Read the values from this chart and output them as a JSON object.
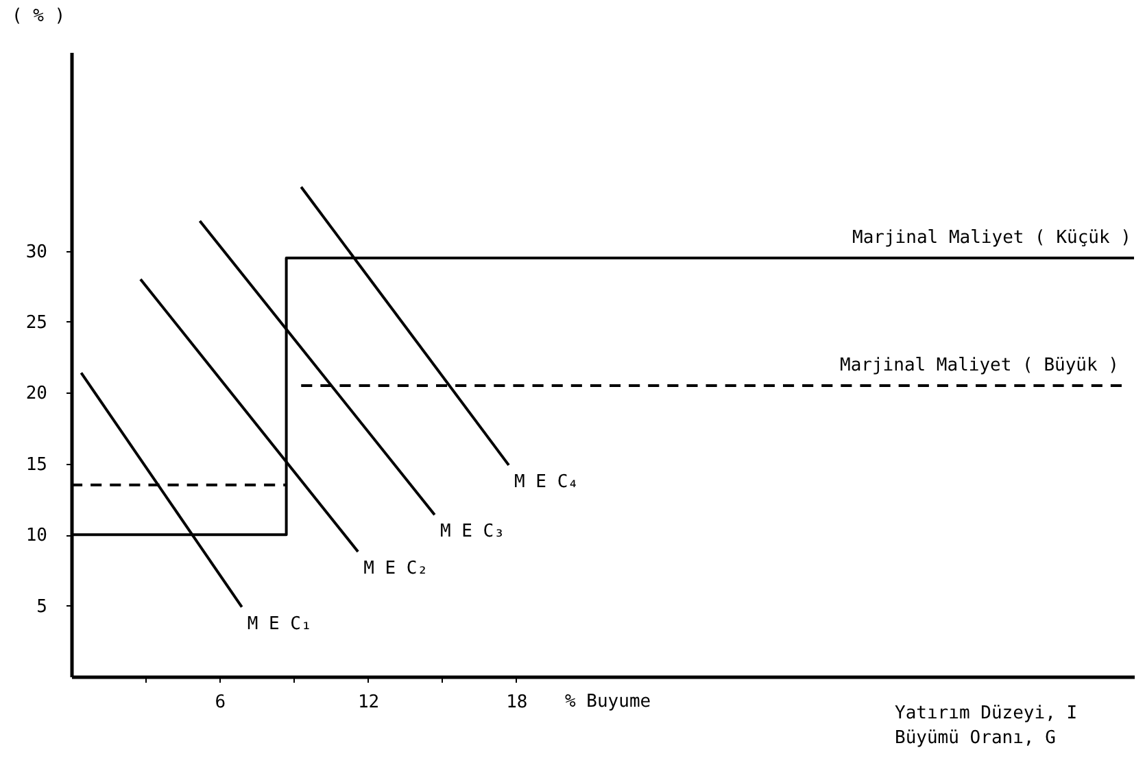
{
  "chart_data": {
    "type": "line",
    "ylabel": "( % )",
    "xlabel": "Yatırım Düzeyi, I\nBüyümü Oranı, G",
    "annotations": [
      "% Buyume"
    ],
    "xlim": [
      0,
      43
    ],
    "ylim": [
      0,
      44
    ],
    "xticks": [
      {
        "value": 3,
        "label": null
      },
      6,
      {
        "value": 9,
        "label": null
      },
      12,
      {
        "value": 15,
        "label": null
      },
      18
    ],
    "yticks": [
      5,
      10,
      15,
      20,
      25,
      30
    ],
    "grid": false,
    "marker": "none",
    "series": [
      {
        "name": "Marjinal Maliyet ( Küçük )",
        "color": "#000000",
        "line_style": "solid",
        "x": [
          0,
          8.7,
          8.7,
          43
        ],
        "values": [
          10,
          10,
          29.5,
          29.5
        ]
      },
      {
        "name": "Marjinal Maliyet ( Büyük )",
        "color": "#000000",
        "line_style": "dashed",
        "x": [
          0,
          8.7,
          null,
          9.3,
          42.5
        ],
        "values": [
          13.5,
          13.5,
          null,
          20.5,
          20.5
        ]
      },
      {
        "name": "M E C₁",
        "color": "#000000",
        "line_style": "solid",
        "x": [
          0.4,
          6.9
        ],
        "values": [
          21.4,
          4.9
        ]
      },
      {
        "name": "M E C₂",
        "color": "#000000",
        "line_style": "solid",
        "x": [
          2.8,
          11.6
        ],
        "values": [
          28.0,
          8.8
        ]
      },
      {
        "name": "M E C₃",
        "color": "#000000",
        "line_style": "solid",
        "x": [
          5.2,
          14.7
        ],
        "values": [
          32.1,
          11.4
        ]
      },
      {
        "name": "M E C₄",
        "color": "#000000",
        "line_style": "solid",
        "x": [
          9.3,
          17.7
        ],
        "values": [
          34.5,
          14.9
        ]
      }
    ]
  }
}
